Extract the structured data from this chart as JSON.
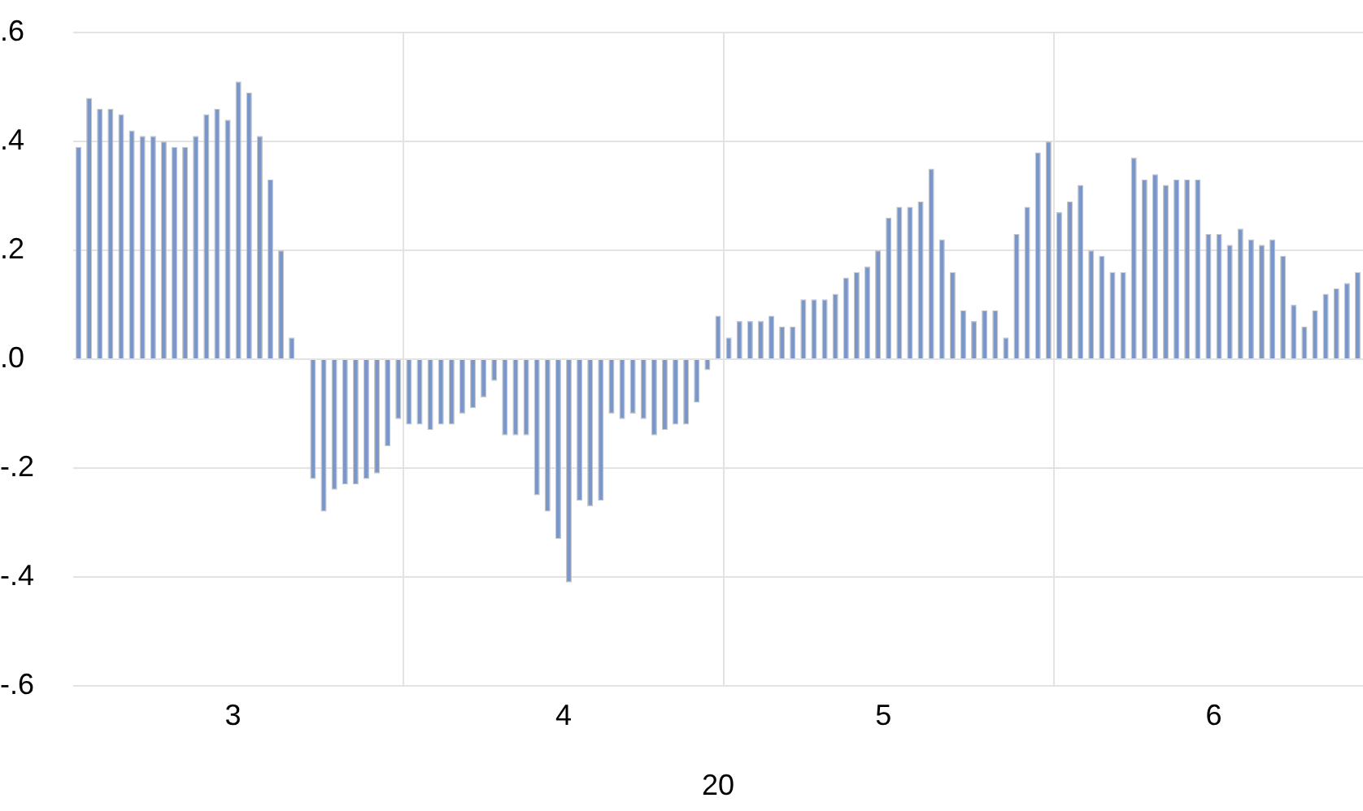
{
  "chart_data": {
    "type": "bar",
    "xlabel": "20",
    "color": "#7b96c8",
    "x": [
      "--03-01",
      "--03-02",
      "--03-03",
      "--03-04",
      "--03-05",
      "--03-06",
      "--03-07",
      "--03-08",
      "--03-09",
      "--03-10",
      "--03-11",
      "--03-12",
      "--03-13",
      "--03-14",
      "--03-15",
      "--03-16",
      "--03-17",
      "--03-18",
      "--03-19",
      "--03-20",
      "--03-21",
      "--03-22",
      "--03-23",
      "--03-24",
      "--03-25",
      "--03-26",
      "--03-27",
      "--03-28",
      "--03-29",
      "--03-30",
      "--03-31",
      "--04-01",
      "--04-02",
      "--04-03",
      "--04-04",
      "--04-05",
      "--04-06",
      "--04-07",
      "--04-08",
      "--04-09",
      "--04-10",
      "--04-11",
      "--04-12",
      "--04-13",
      "--04-14",
      "--04-15",
      "--04-16",
      "--04-17",
      "--04-18",
      "--04-19",
      "--04-20",
      "--04-21",
      "--04-22",
      "--04-23",
      "--04-24",
      "--04-25",
      "--04-26",
      "--04-27",
      "--04-28",
      "--04-29",
      "--04-30",
      "--05-01",
      "--05-02",
      "--05-03",
      "--05-04",
      "--05-05",
      "--05-06",
      "--05-07",
      "--05-08",
      "--05-09",
      "--05-10",
      "--05-11",
      "--05-12",
      "--05-13",
      "--05-14",
      "--05-15",
      "--05-16",
      "--05-17",
      "--05-18",
      "--05-19",
      "--05-20",
      "--05-21",
      "--05-22",
      "--05-23",
      "--05-24",
      "--05-25",
      "--05-26",
      "--05-27",
      "--05-28",
      "--05-29",
      "--05-30",
      "--05-31",
      "--06-01",
      "--06-02",
      "--06-03",
      "--06-04",
      "--06-05",
      "--06-06",
      "--06-07",
      "--06-08",
      "--06-09",
      "--06-10",
      "--06-11",
      "--06-12",
      "--06-13",
      "--06-14",
      "--06-15",
      "--06-16",
      "--06-17",
      "--06-18",
      "--06-19",
      "--06-20",
      "--06-21",
      "--06-22",
      "--06-23",
      "--06-24",
      "--06-25",
      "--06-26",
      "--06-27",
      "--06-28",
      "--06-29"
    ],
    "values": [
      0.39,
      0.48,
      0.46,
      0.46,
      0.45,
      0.42,
      0.41,
      0.41,
      0.4,
      0.39,
      0.39,
      0.41,
      0.45,
      0.46,
      0.44,
      0.51,
      0.49,
      0.41,
      0.33,
      0.2,
      0.04,
      0,
      -0.22,
      -0.28,
      -0.24,
      -0.23,
      -0.23,
      -0.22,
      -0.21,
      -0.16,
      -0.11,
      -0.12,
      -0.12,
      -0.13,
      -0.12,
      -0.12,
      -0.1,
      -0.09,
      -0.07,
      -0.04,
      -0.14,
      -0.14,
      -0.14,
      -0.25,
      -0.28,
      -0.33,
      -0.41,
      -0.26,
      -0.27,
      -0.26,
      -0.1,
      -0.11,
      -0.1,
      -0.11,
      -0.14,
      -0.13,
      -0.12,
      -0.12,
      -0.08,
      -0.02,
      0.08,
      0.04,
      0.07,
      0.07,
      0.07,
      0.08,
      0.06,
      0.06,
      0.11,
      0.11,
      0.11,
      0.12,
      0.15,
      0.16,
      0.17,
      0.2,
      0.26,
      0.28,
      0.28,
      0.29,
      0.35,
      0.22,
      0.16,
      0.09,
      0.07,
      0.09,
      0.09,
      0.04,
      0.23,
      0.28,
      0.38,
      0.4,
      0.27,
      0.29,
      0.32,
      0.2,
      0.19,
      0.16,
      0.16,
      0.37,
      0.33,
      0.34,
      0.32,
      0.33,
      0.33,
      0.33,
      0.23,
      0.23,
      0.21,
      0.24,
      0.22,
      0.21,
      0.22,
      0.19,
      0.1,
      0.06,
      0.09,
      0.12,
      0.13,
      0.14,
      0.16
    ],
    "xlim": [
      "--03-01",
      "--06-30"
    ],
    "xticks": [
      {
        "value": "--04-01",
        "label": null
      },
      {
        "value": "--05-01",
        "label": null
      },
      {
        "value": "--06-01",
        "label": null
      },
      {
        "value": "--03-16",
        "label": "3"
      },
      {
        "value": "--04-16",
        "label": "4"
      },
      {
        "value": "--05-16",
        "label": "5"
      },
      {
        "value": "--06-16",
        "label": "6"
      }
    ],
    "ylim": [
      -0.6,
      0.6
    ],
    "yticks": [
      {
        "value": -0.6,
        "label": "-.6"
      },
      {
        "value": -0.4,
        "label": "-.4"
      },
      {
        "value": -0.2,
        "label": "-.2"
      },
      {
        "value": 0,
        "label": ".0"
      },
      {
        "value": 0.2,
        "label": ".2"
      },
      {
        "value": 0.4,
        "label": ".4"
      },
      {
        "value": 0.6,
        "label": ".6"
      }
    ],
    "grid": true
  }
}
